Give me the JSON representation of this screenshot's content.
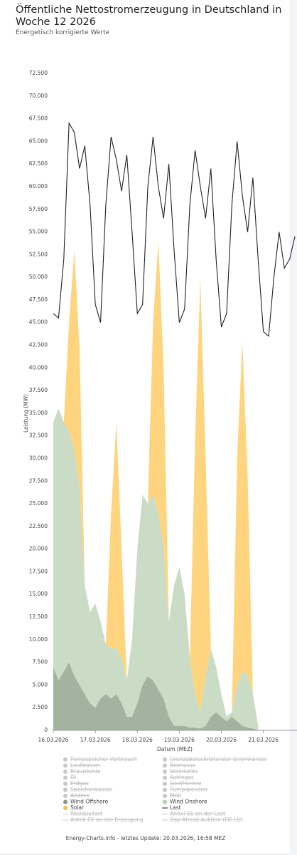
{
  "chart_data": {
    "type": "area-line",
    "title": "Öffentliche Nettostromerzeugung in Deutschland in Woche 12 2026",
    "subtitle": "Energetisch korrigierte Werte",
    "y_label": "Leistung (MW)",
    "x_label": "Datum (MEZ)",
    "footer": "Energy-Charts.info - letztes Update: 20.03.2026, 16:58 MEZ",
    "x": [
      0,
      0.125,
      0.25,
      0.375,
      0.5,
      0.625,
      0.75,
      0.875,
      1,
      1.125,
      1.25,
      1.375,
      1.5,
      1.625,
      1.75,
      1.875,
      2,
      2.125,
      2.25,
      2.375,
      2.5,
      2.625,
      2.75,
      2.875,
      3,
      3.125,
      3.25,
      3.375,
      3.5,
      3.625,
      3.75,
      3.875,
      4,
      4.125,
      4.25,
      4.375,
      4.5,
      4.625,
      4.75,
      4.875,
      5,
      5.125,
      5.25,
      5.375,
      5.5,
      5.625,
      5.75
    ],
    "xlim": [
      0,
      5.8
    ],
    "xticks": [
      {
        "value": 0,
        "label": "16.03.2026"
      },
      {
        "value": 1,
        "label": "17.03.2026"
      },
      {
        "value": 2,
        "label": "18.03.2026"
      },
      {
        "value": 3,
        "label": "19.03.2026"
      },
      {
        "value": 4,
        "label": "20.03.2026"
      },
      {
        "value": 5,
        "label": "21.03.2026"
      }
    ],
    "ylim": [
      0,
      72500
    ],
    "yticks": [
      0,
      {
        "value": 2500,
        "label": "2.500"
      },
      {
        "value": 5000,
        "label": "5.000"
      },
      {
        "value": 7500,
        "label": "7.500"
      },
      {
        "value": 10000,
        "label": "10.000"
      },
      {
        "value": 12500,
        "label": "12.500"
      },
      {
        "value": 15000,
        "label": "15.000"
      },
      {
        "value": 17500,
        "label": "17.500"
      },
      {
        "value": 20000,
        "label": "20.000"
      },
      {
        "value": 22500,
        "label": "22.500"
      },
      {
        "value": 25000,
        "label": "25.000"
      },
      {
        "value": 27500,
        "label": "27.500"
      },
      {
        "value": 30000,
        "label": "30.000"
      },
      {
        "value": 32500,
        "label": "32.500"
      },
      {
        "value": 35000,
        "label": "35.000"
      },
      {
        "value": 37500,
        "label": "37.500"
      },
      {
        "value": 40000,
        "label": "40.000"
      },
      {
        "value": 42500,
        "label": "42.500"
      },
      {
        "value": 45000,
        "label": "45.000"
      },
      {
        "value": 47500,
        "label": "47.500"
      },
      {
        "value": 50000,
        "label": "50.000"
      },
      {
        "value": 52500,
        "label": "52.500"
      },
      {
        "value": 55000,
        "label": "55.000"
      },
      {
        "value": 57500,
        "label": "57.500"
      },
      {
        "value": 60000,
        "label": "60.000"
      },
      {
        "value": 62500,
        "label": "62.500"
      },
      {
        "value": 65000,
        "label": "65.000"
      },
      {
        "value": 67500,
        "label": "67.500"
      },
      {
        "value": 70000,
        "label": "70.000"
      },
      {
        "value": 72500,
        "label": "72.500"
      }
    ],
    "grid": false,
    "series": [
      {
        "name": "Wind Offshore",
        "kind": "area",
        "color": "#a3b39f",
        "values": [
          7000,
          5500,
          6500,
          7500,
          6000,
          5000,
          4000,
          3000,
          2500,
          3500,
          4000,
          3500,
          4000,
          3000,
          1500,
          1500,
          3000,
          5000,
          6000,
          5500,
          4500,
          3500,
          1500,
          500,
          500,
          500,
          300,
          300,
          200,
          500,
          1500,
          2000,
          1500,
          1000,
          1500,
          1000,
          500,
          300,
          200,
          0,
          null,
          null,
          null,
          null,
          null,
          null,
          null
        ]
      },
      {
        "name": "Wind Onshore",
        "kind": "area",
        "color": "#cadcc5",
        "values": [
          27000,
          30000,
          27500,
          25500,
          25000,
          22000,
          12000,
          10000,
          11500,
          8500,
          5500,
          5500,
          5000,
          5000,
          4000,
          8500,
          17000,
          21000,
          19000,
          20500,
          19500,
          16500,
          10500,
          15500,
          17500,
          14500,
          7700,
          3700,
          1800,
          5500,
          7500,
          5000,
          2500,
          500,
          500,
          4000,
          6000,
          5700,
          3800,
          500,
          null,
          null,
          null,
          null,
          null,
          null,
          null
        ]
      },
      {
        "name": "Solar",
        "kind": "area",
        "color": "#ffd47f",
        "values": [
          0,
          0,
          0,
          12000,
          22000,
          15000,
          0,
          0,
          0,
          0,
          0,
          15000,
          25000,
          12000,
          0,
          0,
          0,
          0,
          0,
          19000,
          30000,
          20000,
          0,
          0,
          0,
          0,
          0,
          28000,
          48000,
          24000,
          0,
          0,
          0,
          0,
          0,
          25000,
          36500,
          22000,
          0,
          0,
          null,
          null,
          null,
          null,
          null,
          null,
          null
        ]
      },
      {
        "name": "Last",
        "kind": "line",
        "color": "#222222",
        "values": [
          46000,
          45500,
          52000,
          67000,
          66000,
          62000,
          64500,
          58000,
          47000,
          45000,
          58000,
          65500,
          63000,
          59500,
          63500,
          55000,
          46000,
          47000,
          60000,
          65500,
          60000,
          56500,
          62500,
          53000,
          45000,
          46500,
          58000,
          64000,
          60000,
          56500,
          62000,
          52000,
          44500,
          46000,
          58000,
          65000,
          59000,
          55000,
          61000,
          52000,
          44000,
          43500,
          50000,
          55000,
          51000,
          52000,
          54500
        ]
      }
    ],
    "inactive_legend": [
      {
        "name": "Pumpspeicher Verbrauch",
        "marker": "dot"
      },
      {
        "name": "Grenzüberschreitender Stromhandel",
        "marker": "dot"
      },
      {
        "name": "Laufwasser",
        "marker": "dot"
      },
      {
        "name": "Biomasse",
        "marker": "dot"
      },
      {
        "name": "Braunkohle",
        "marker": "dot"
      },
      {
        "name": "Steinkohle",
        "marker": "dot"
      },
      {
        "name": "Öl",
        "marker": "dot"
      },
      {
        "name": "Kohlegas",
        "marker": "dot"
      },
      {
        "name": "Erdgas",
        "marker": "dot"
      },
      {
        "name": "Geothermie",
        "marker": "dot"
      },
      {
        "name": "Speicherwasser",
        "marker": "dot"
      },
      {
        "name": "Pumpspeicher",
        "marker": "dot"
      },
      {
        "name": "Andere",
        "marker": "dot"
      },
      {
        "name": "Müll",
        "marker": "dot"
      },
      {
        "name": "Residuallast",
        "marker": "line"
      },
      {
        "name": "Anteil EE an der Last",
        "marker": "line"
      },
      {
        "name": "Anteil EE an der Erzeugung",
        "marker": "line"
      },
      {
        "name": "Day Ahead Auktion (DE-LU)",
        "marker": "line"
      }
    ]
  }
}
